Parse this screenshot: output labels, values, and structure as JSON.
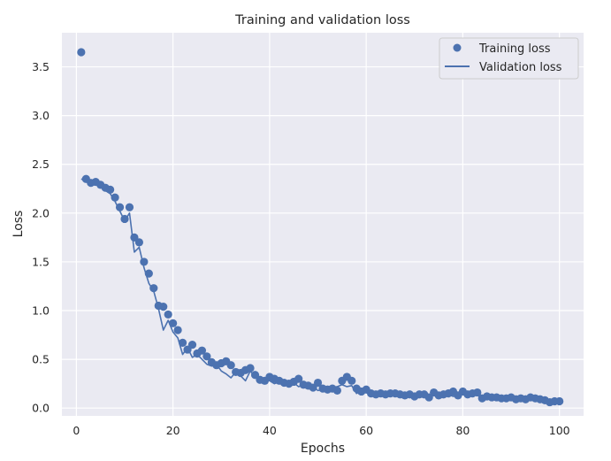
{
  "chart_data": {
    "type": "scatter",
    "title": "Training and validation loss",
    "xlabel": "Epochs",
    "ylabel": "Loss",
    "xlim": [
      -3,
      105
    ],
    "ylim": [
      -0.08,
      3.85
    ],
    "xticks": [
      0,
      20,
      40,
      60,
      80,
      100
    ],
    "yticks": [
      0.0,
      0.5,
      1.0,
      1.5,
      2.0,
      2.5,
      3.0,
      3.5
    ],
    "ytick_labels": [
      "0.0",
      "0.5",
      "1.0",
      "1.5",
      "2.0",
      "2.5",
      "3.0",
      "3.5"
    ],
    "grid": true,
    "legend_position": "top-right",
    "series": [
      {
        "name": "Training loss",
        "style": "markers",
        "color": "#4c72b0",
        "x": [
          1,
          2,
          3,
          4,
          5,
          6,
          7,
          8,
          9,
          10,
          11,
          12,
          13,
          14,
          15,
          16,
          17,
          18,
          19,
          20,
          21,
          22,
          23,
          24,
          25,
          26,
          27,
          28,
          29,
          30,
          31,
          32,
          33,
          34,
          35,
          36,
          37,
          38,
          39,
          40,
          41,
          42,
          43,
          44,
          45,
          46,
          47,
          48,
          49,
          50,
          51,
          52,
          53,
          54,
          55,
          56,
          57,
          58,
          59,
          60,
          61,
          62,
          63,
          64,
          65,
          66,
          67,
          68,
          69,
          70,
          71,
          72,
          73,
          74,
          75,
          76,
          77,
          78,
          79,
          80,
          81,
          82,
          83,
          84,
          85,
          86,
          87,
          88,
          89,
          90,
          91,
          92,
          93,
          94,
          95,
          96,
          97,
          98,
          99,
          100
        ],
        "values": [
          3.65,
          2.35,
          2.31,
          2.32,
          2.29,
          2.26,
          2.24,
          2.16,
          2.06,
          1.94,
          2.06,
          1.75,
          1.7,
          1.5,
          1.38,
          1.23,
          1.05,
          1.04,
          0.96,
          0.87,
          0.8,
          0.67,
          0.6,
          0.65,
          0.56,
          0.59,
          0.53,
          0.47,
          0.44,
          0.46,
          0.48,
          0.44,
          0.37,
          0.36,
          0.39,
          0.41,
          0.34,
          0.29,
          0.28,
          0.32,
          0.3,
          0.28,
          0.26,
          0.25,
          0.27,
          0.3,
          0.24,
          0.23,
          0.21,
          0.26,
          0.2,
          0.19,
          0.2,
          0.18,
          0.28,
          0.32,
          0.28,
          0.2,
          0.17,
          0.19,
          0.15,
          0.14,
          0.15,
          0.14,
          0.15,
          0.15,
          0.14,
          0.13,
          0.14,
          0.12,
          0.14,
          0.14,
          0.11,
          0.16,
          0.13,
          0.14,
          0.15,
          0.17,
          0.13,
          0.17,
          0.14,
          0.15,
          0.16,
          0.1,
          0.12,
          0.11,
          0.11,
          0.1,
          0.1,
          0.11,
          0.09,
          0.1,
          0.09,
          0.11,
          0.1,
          0.09,
          0.08,
          0.06,
          0.07,
          0.07
        ]
      },
      {
        "name": "Validation loss",
        "style": "line",
        "color": "#4c72b0",
        "x": [
          1,
          2,
          3,
          4,
          5,
          6,
          7,
          8,
          9,
          10,
          11,
          12,
          13,
          14,
          15,
          16,
          17,
          18,
          19,
          20,
          21,
          22,
          23,
          24,
          25,
          26,
          27,
          28,
          29,
          30,
          31,
          32,
          33,
          34,
          35,
          36,
          37,
          38,
          39,
          40,
          41,
          42,
          43,
          44,
          45,
          46,
          47,
          48,
          49,
          50,
          51,
          52,
          53,
          54,
          55,
          56,
          57,
          58,
          59,
          60,
          61,
          62,
          63,
          64,
          65,
          66,
          67,
          68,
          69,
          70,
          71,
          72,
          73,
          74,
          75,
          76,
          77,
          78,
          79,
          80,
          81,
          82,
          83,
          84,
          85,
          86,
          87,
          88,
          89,
          90,
          91,
          92,
          93,
          94,
          95,
          96,
          97,
          98,
          99,
          100
        ],
        "values": [
          2.35,
          2.33,
          2.3,
          2.3,
          2.27,
          2.23,
          2.2,
          2.12,
          2.02,
          1.92,
          2.0,
          1.6,
          1.65,
          1.44,
          1.28,
          1.2,
          1.02,
          0.8,
          0.9,
          0.78,
          0.72,
          0.55,
          0.62,
          0.52,
          0.55,
          0.5,
          0.45,
          0.43,
          0.45,
          0.38,
          0.35,
          0.31,
          0.37,
          0.33,
          0.28,
          0.38,
          0.32,
          0.27,
          0.3,
          0.28,
          0.25,
          0.27,
          0.23,
          0.24,
          0.26,
          0.22,
          0.24,
          0.2,
          0.22,
          0.18,
          0.19,
          0.17,
          0.21,
          0.22,
          0.24,
          0.22,
          0.23,
          0.15,
          0.18,
          0.16,
          0.13,
          0.14,
          0.13,
          0.12,
          0.15,
          0.13,
          0.12,
          0.12,
          0.13,
          0.11,
          0.13,
          0.12,
          0.1,
          0.14,
          0.12,
          0.13,
          0.14,
          0.12,
          0.12,
          0.15,
          0.12,
          0.13,
          0.14,
          0.09,
          0.11,
          0.1,
          0.09,
          0.09,
          0.09,
          0.1,
          0.08,
          0.09,
          0.08,
          0.1,
          0.09,
          0.08,
          0.06,
          0.05,
          0.05,
          0.06
        ]
      }
    ]
  }
}
